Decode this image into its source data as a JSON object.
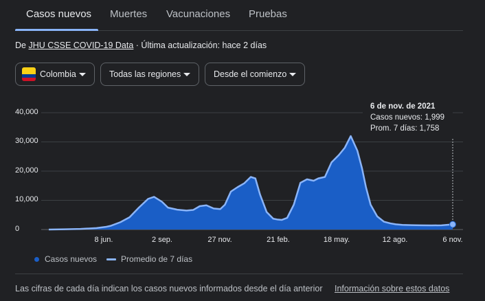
{
  "tabs": [
    {
      "label": "Casos nuevos",
      "active": true
    },
    {
      "label": "Muertes",
      "active": false
    },
    {
      "label": "Vacunaciones",
      "active": false
    },
    {
      "label": "Pruebas",
      "active": false
    }
  ],
  "source": {
    "prefix": "De",
    "link": "JHU CSSE COVID-19 Data",
    "updated": "· Última actualización: hace 2 días"
  },
  "filters": {
    "country": "Colombia",
    "region": "Todas las regiones",
    "period": "Desde el comienzo"
  },
  "tooltip": {
    "date": "6 de nov. de 2021",
    "cases": "Casos nuevos: 1,999",
    "avg": "Prom. 7 días: 1,758"
  },
  "legend": {
    "cases": "Casos nuevos",
    "avg": "Promedio de 7 días"
  },
  "footer": {
    "note": "Las cifras de cada día indican los casos nuevos informados desde el día anterior",
    "link": "Información sobre estos datos"
  },
  "colors": {
    "bars": "#1a5ec6",
    "avg_line": "#8ab4f8",
    "background": "#202124"
  },
  "chart_data": {
    "type": "area",
    "y_ticks": [
      "40,000",
      "30,000",
      "20,000",
      "10,000",
      "0"
    ],
    "x_ticks": [
      "8 jun.",
      "2 sep.",
      "27 nov.",
      "21 feb.",
      "18 may.",
      "12 ago.",
      "6 nov."
    ],
    "ylim": [
      0,
      40000
    ],
    "series": [
      {
        "name": "Promedio de 7 días",
        "x": [
          "2020-03-06",
          "2020-03-30",
          "2020-04-23",
          "2020-05-17",
          "2020-05-31",
          "2020-06-08",
          "2020-06-22",
          "2020-07-06",
          "2020-07-20",
          "2020-08-03",
          "2020-08-12",
          "2020-08-24",
          "2020-09-02",
          "2020-09-16",
          "2020-09-30",
          "2020-10-10",
          "2020-10-20",
          "2020-10-30",
          "2020-11-10",
          "2020-11-20",
          "2020-11-27",
          "2020-12-06",
          "2020-12-16",
          "2020-12-26",
          "2021-01-05",
          "2021-01-12",
          "2021-01-19",
          "2021-01-29",
          "2021-02-08",
          "2021-02-15",
          "2021-02-21",
          "2021-03-01",
          "2021-03-11",
          "2021-03-21",
          "2021-03-31",
          "2021-04-10",
          "2021-04-17",
          "2021-04-27",
          "2021-05-07",
          "2021-05-18",
          "2021-05-27",
          "2021-06-05",
          "2021-06-15",
          "2021-06-22",
          "2021-06-28",
          "2021-07-05",
          "2021-07-15",
          "2021-07-25",
          "2021-08-04",
          "2021-08-12",
          "2021-08-22",
          "2021-09-05",
          "2021-09-20",
          "2021-10-05",
          "2021-10-20",
          "2021-11-06"
        ],
        "values": [
          0,
          100,
          200,
          500,
          900,
          1300,
          2500,
          4200,
          7500,
          10500,
          11200,
          9500,
          7500,
          6800,
          6500,
          6700,
          8000,
          8300,
          7200,
          7000,
          8500,
          13000,
          14500,
          15800,
          18000,
          17500,
          12000,
          6000,
          3700,
          3400,
          3300,
          4000,
          8500,
          16000,
          17200,
          16700,
          17500,
          18000,
          23000,
          25500,
          28000,
          32000,
          27000,
          21000,
          14500,
          8500,
          4500,
          2700,
          2100,
          1800,
          1600,
          1500,
          1450,
          1400,
          1450,
          1758
        ]
      }
    ]
  }
}
